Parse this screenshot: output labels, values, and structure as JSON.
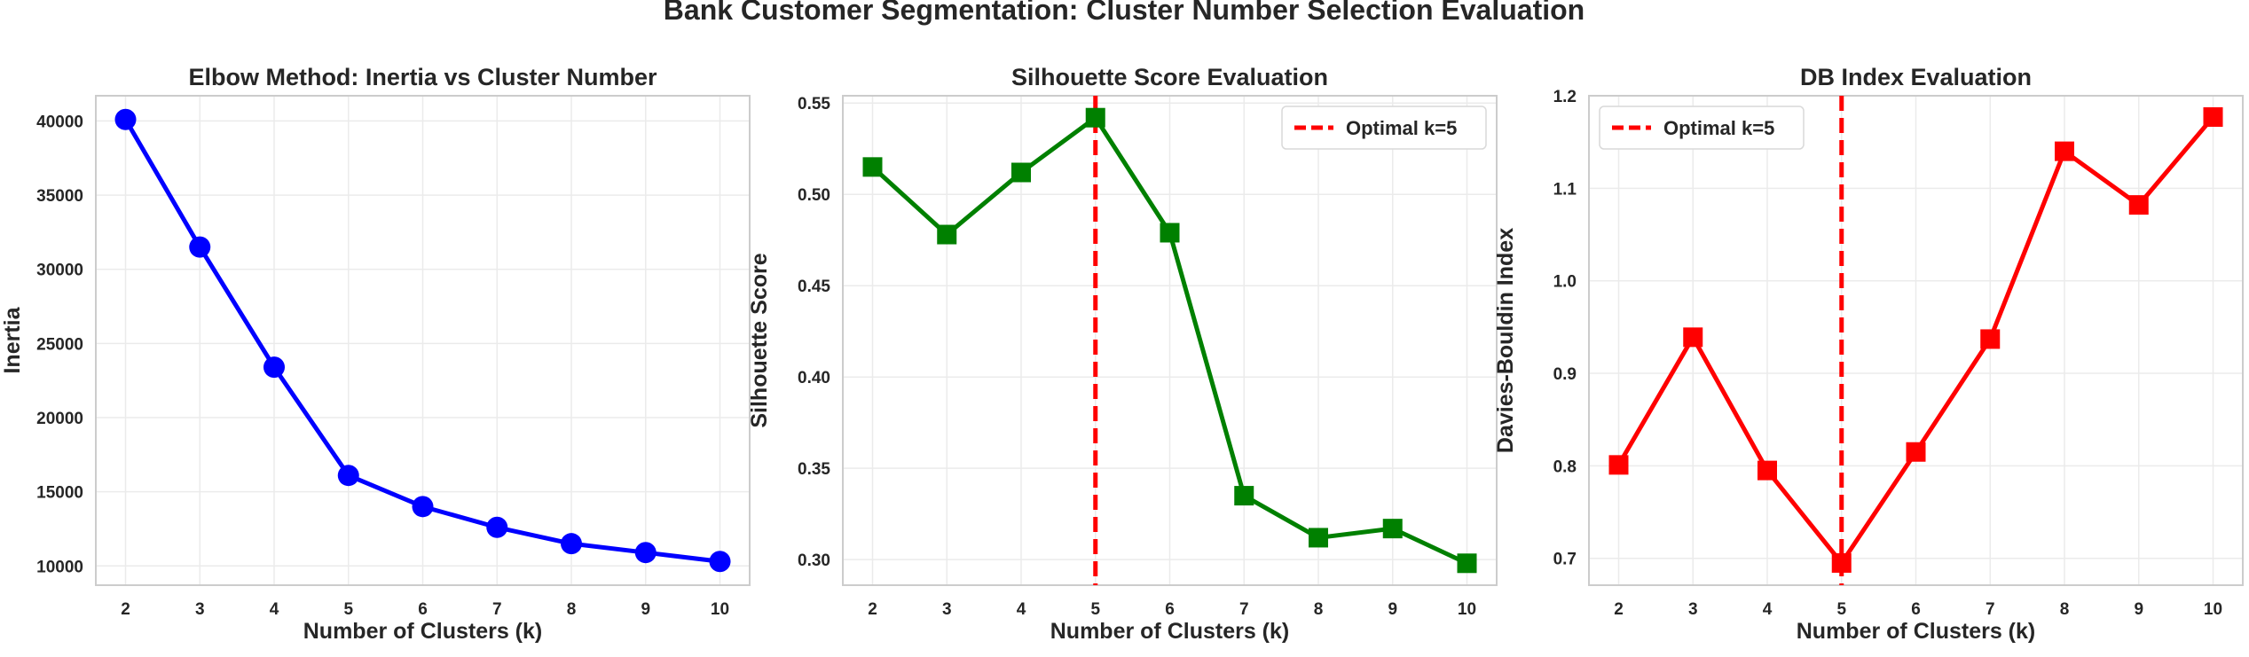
{
  "figure_title": "Bank Customer Segmentation: Cluster Number Selection Evaluation",
  "chart_data": [
    {
      "type": "line",
      "title": "Elbow Method: Inertia vs Cluster Number",
      "xlabel": "Number of Clusters (k)",
      "ylabel": "Inertia",
      "x": [
        2,
        3,
        4,
        5,
        6,
        7,
        8,
        9,
        10
      ],
      "series": [
        {
          "values": [
            40100,
            31500,
            23400,
            16100,
            14000,
            12600,
            11500,
            10900,
            10300
          ],
          "color": "#0000ff",
          "marker": "circle"
        }
      ],
      "xlim": [
        1.6,
        10.4
      ],
      "ylim": [
        8700,
        41700
      ],
      "yticks": [
        10000,
        15000,
        20000,
        25000,
        30000,
        35000,
        40000
      ],
      "ytick_labels": [
        "10000",
        "15000",
        "20000",
        "25000",
        "30000",
        "35000",
        "40000"
      ],
      "xticks": [
        2,
        3,
        4,
        5,
        6,
        7,
        8,
        9,
        10
      ],
      "xtick_labels": [
        "2",
        "3",
        "4",
        "5",
        "6",
        "7",
        "8",
        "9",
        "10"
      ],
      "grid": true,
      "legend": null
    },
    {
      "type": "line",
      "title": "Silhouette Score Evaluation",
      "xlabel": "Number of Clusters (k)",
      "ylabel": "Silhouette Score",
      "x": [
        2,
        3,
        4,
        5,
        6,
        7,
        8,
        9,
        10
      ],
      "series": [
        {
          "values": [
            0.515,
            0.478,
            0.512,
            0.542,
            0.479,
            0.335,
            0.312,
            0.317,
            0.298
          ],
          "color": "#008000",
          "marker": "square"
        }
      ],
      "vline": {
        "x": 5,
        "label": "Optimal k=5",
        "color": "#ff0000"
      },
      "xlim": [
        1.6,
        10.4
      ],
      "ylim": [
        0.286,
        0.554
      ],
      "yticks": [
        0.3,
        0.35,
        0.4,
        0.45,
        0.5,
        0.55
      ],
      "ytick_labels": [
        "0.30",
        "0.35",
        "0.40",
        "0.45",
        "0.50",
        "0.55"
      ],
      "xticks": [
        2,
        3,
        4,
        5,
        6,
        7,
        8,
        9,
        10
      ],
      "xtick_labels": [
        "2",
        "3",
        "4",
        "5",
        "6",
        "7",
        "8",
        "9",
        "10"
      ],
      "grid": true,
      "legend": {
        "position": "top-right",
        "entries": [
          "Optimal k=5"
        ]
      }
    },
    {
      "type": "line",
      "title": "DB Index Evaluation",
      "xlabel": "Number of Clusters (k)",
      "ylabel": "Davies-Bouldin Index",
      "x": [
        2,
        3,
        4,
        5,
        6,
        7,
        8,
        9,
        10
      ],
      "series": [
        {
          "values": [
            0.801,
            0.939,
            0.795,
            0.695,
            0.815,
            0.937,
            1.14,
            1.082,
            1.177
          ],
          "color": "#ff0000",
          "marker": "square"
        }
      ],
      "vline": {
        "x": 5,
        "label": "Optimal k=5",
        "color": "#ff0000"
      },
      "xlim": [
        1.6,
        10.4
      ],
      "ylim": [
        0.671,
        1.2
      ],
      "yticks": [
        0.7,
        0.8,
        0.9,
        1.0,
        1.1,
        1.2
      ],
      "ytick_labels": [
        "0.7",
        "0.8",
        "0.9",
        "1.0",
        "1.1",
        "1.2"
      ],
      "xticks": [
        2,
        3,
        4,
        5,
        6,
        7,
        8,
        9,
        10
      ],
      "xtick_labels": [
        "2",
        "3",
        "4",
        "5",
        "6",
        "7",
        "8",
        "9",
        "10"
      ],
      "grid": true,
      "legend": {
        "position": "top-left",
        "entries": [
          "Optimal k=5"
        ]
      }
    }
  ]
}
